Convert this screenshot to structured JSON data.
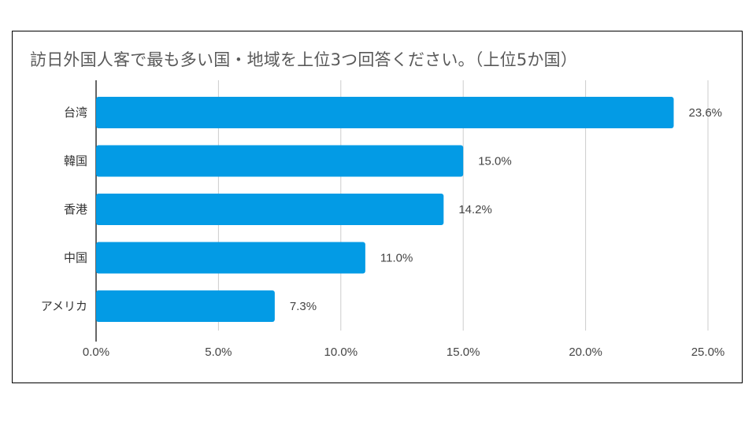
{
  "chart_data": {
    "type": "bar",
    "orientation": "horizontal",
    "title": "訪日外国人客で最も多い国・地域を上位3つ回答ください。（上位5か国）",
    "categories": [
      "台湾",
      "韓国",
      "香港",
      "中国",
      "アメリカ"
    ],
    "values": [
      23.6,
      15.0,
      14.2,
      11.0,
      7.3
    ],
    "value_labels": [
      "23.6%",
      "15.0%",
      "14.2%",
      "11.0%",
      "7.3%"
    ],
    "x_ticks": [
      0,
      5,
      10,
      15,
      20,
      25
    ],
    "x_tick_labels": [
      "0.0%",
      "5.0%",
      "10.0%",
      "15.0%",
      "20.0%",
      "25.0%"
    ],
    "xlim": [
      0,
      25
    ],
    "xlabel": "",
    "ylabel": "",
    "grid": true,
    "bar_color": "#039be5",
    "gridline_color": "#cccccc",
    "axis_color": "#333333"
  }
}
